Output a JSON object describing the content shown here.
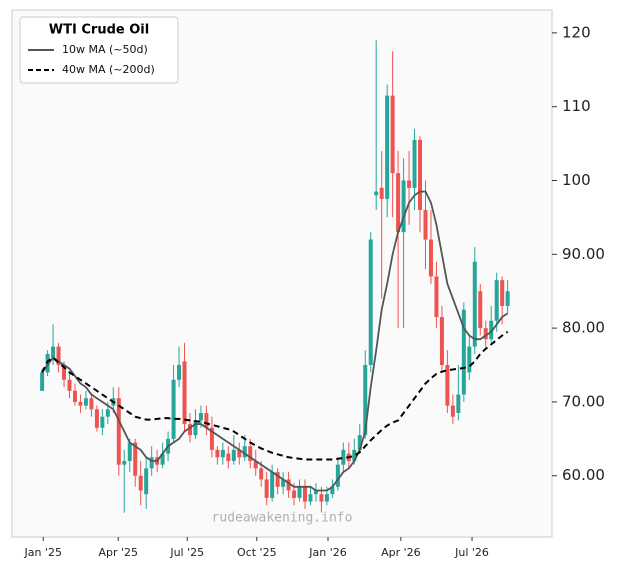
{
  "chart_data": {
    "type": "candlestick",
    "legend_title": "WTI Crude Oil",
    "watermark": "rudeawakening.info",
    "up_color": "#26a69a",
    "down_color": "#ef5350",
    "open": [
      71.5,
      74,
      76,
      77.5,
      75,
      73,
      71.5,
      70,
      69.5,
      70.5,
      69,
      66.5,
      68,
      69.5,
      70.5,
      61.5,
      62,
      64.5,
      60,
      57.5,
      61,
      62.5,
      61.5,
      63,
      65,
      73,
      75.5,
      67,
      65.5,
      67.5,
      68.5,
      66.5,
      63.5,
      62.5,
      63,
      62,
      63.5,
      62.5,
      64,
      62,
      61,
      59.5,
      57,
      60.5,
      58.5,
      59.5,
      58,
      57,
      58.5,
      56.5,
      57.5,
      57.5,
      56.5,
      57.5,
      58.5,
      61.5,
      63,
      62,
      63.5,
      65.5,
      75,
      98,
      99,
      97.5,
      111.5,
      101,
      93,
      100,
      99,
      105.5,
      96,
      92,
      87,
      81.5,
      75,
      69.5,
      68.5,
      71,
      74,
      77.5,
      85,
      80,
      78.5,
      81,
      86.5,
      83
    ],
    "high": [
      74.5,
      77,
      80.5,
      78,
      75.5,
      74,
      72.5,
      71,
      71.5,
      71,
      69.5,
      69,
      70,
      72,
      72,
      63.5,
      65,
      65,
      62,
      62.5,
      64,
      63.5,
      64.5,
      66,
      75,
      77.5,
      78,
      68.5,
      69,
      69.5,
      69.5,
      68,
      64,
      64.5,
      64,
      65.5,
      64.5,
      65.5,
      65,
      63.5,
      62,
      60.5,
      61.5,
      61,
      60.5,
      60.5,
      59,
      59.5,
      59.5,
      58.5,
      59,
      58.5,
      58.5,
      59.5,
      62.5,
      64.5,
      64.5,
      65,
      67,
      77,
      93,
      119,
      104,
      113,
      117.5,
      104,
      103,
      104,
      107,
      106,
      100,
      96,
      89,
      83,
      77,
      71,
      75,
      83.5,
      79,
      91,
      86,
      81,
      83,
      87.5,
      87,
      86.5
    ],
    "low": [
      71.5,
      73.5,
      75,
      74,
      72,
      70.5,
      69.5,
      68.5,
      69,
      68,
      66,
      65.5,
      67,
      68.5,
      60,
      55,
      60.5,
      58.5,
      56,
      55.5,
      60,
      60.5,
      61,
      62,
      64.5,
      72,
      66,
      64.5,
      65,
      66.5,
      65.5,
      62.5,
      61.5,
      61.5,
      61,
      61.5,
      61.5,
      62,
      61,
      60,
      58.5,
      56,
      56.5,
      57.5,
      57.5,
      57,
      56,
      56.5,
      55.5,
      56,
      56.5,
      55,
      56,
      57,
      58,
      60.5,
      61,
      61.5,
      63,
      65,
      74,
      96,
      84,
      95,
      95,
      80,
      80,
      94,
      96,
      93,
      88,
      86,
      80,
      74,
      68.5,
      67,
      67.5,
      70,
      73,
      76.5,
      79,
      77.5,
      78,
      79.5,
      80.5,
      82
    ],
    "close": [
      74,
      76.5,
      77.5,
      75,
      73,
      71.5,
      70,
      69.5,
      70.5,
      69,
      66.5,
      68,
      69,
      70.5,
      61.5,
      62,
      64.5,
      60,
      58,
      61,
      62.5,
      61.5,
      63,
      65,
      73,
      75,
      67,
      65.5,
      67.5,
      68.5,
      66.5,
      63.5,
      62.5,
      63.5,
      62,
      63.5,
      62.5,
      64,
      62,
      61,
      59.5,
      57,
      60.5,
      58.5,
      59.5,
      58,
      57,
      58.5,
      56.5,
      57.5,
      58,
      56.5,
      57.5,
      58.5,
      61.5,
      63.5,
      62,
      63.5,
      65.5,
      75,
      92,
      98.5,
      97.5,
      111.5,
      101,
      93,
      100,
      99,
      105.5,
      96,
      92,
      87,
      81.5,
      75,
      69.5,
      68,
      71,
      82.5,
      77.5,
      89,
      80,
      78.5,
      81,
      86.5,
      83,
      85
    ],
    "series": [
      {
        "name": "10w MA (~50d)",
        "color": "#555555",
        "dash": false,
        "values": [
          74,
          75,
          76,
          75.5,
          75,
          74.5,
          73.5,
          72.5,
          72,
          71,
          70.5,
          70,
          69.5,
          69,
          67.5,
          66,
          64.5,
          64,
          63.5,
          62.5,
          62,
          62,
          63,
          64,
          64.5,
          65,
          66,
          66.5,
          67,
          67,
          66.5,
          66,
          65.5,
          65,
          64.5,
          64,
          63.5,
          63,
          62.5,
          62,
          61.5,
          61,
          60.5,
          60,
          59.5,
          59,
          58.5,
          58.5,
          58.5,
          58.5,
          58,
          58,
          58,
          58.5,
          59.5,
          60.5,
          61,
          62,
          63.5,
          66,
          72,
          77,
          82.5,
          86,
          90,
          93,
          95,
          97,
          98,
          98.5,
          98.5,
          97,
          94,
          90,
          86,
          84,
          82,
          80,
          79,
          78.5,
          78.5,
          79,
          79.5,
          80.5,
          81.5,
          82
        ]
      },
      {
        "name": "40w MA (~200d)",
        "color": "#000000",
        "dash": true,
        "values": [
          74,
          75.5,
          76,
          75.3,
          74.7,
          74,
          73.5,
          73,
          72.5,
          72,
          71.5,
          71,
          70.5,
          70,
          69.5,
          69,
          68.5,
          68,
          67.8,
          67.6,
          67.6,
          67.7,
          67.8,
          67.8,
          67.7,
          67.7,
          67.6,
          67.5,
          67.4,
          67.3,
          67.1,
          66.9,
          66.7,
          66.5,
          66.3,
          66,
          65.5,
          65,
          64.5,
          64.1,
          63.7,
          63.4,
          63.1,
          62.9,
          62.7,
          62.5,
          62.4,
          62.3,
          62.2,
          62.2,
          62.2,
          62.2,
          62.2,
          62.2,
          62.3,
          62.4,
          62.5,
          62.7,
          63.2,
          64,
          64.8,
          65.5,
          66.2,
          66.8,
          67.2,
          67.5,
          68.5,
          69.5,
          70.5,
          71.5,
          72.5,
          73.2,
          73.8,
          74.1,
          74.3,
          74.4,
          74.5,
          74.6,
          74.8,
          75.5,
          76.5,
          77.2,
          77.8,
          78.4,
          79,
          79.5
        ]
      }
    ],
    "xlim": [
      -5.5,
      93.1
    ],
    "xticks": [
      {
        "value": 0.2,
        "label": "Jan '25"
      },
      {
        "value": 13.9,
        "label": "Apr '25"
      },
      {
        "value": 26.5,
        "label": "Jul '25"
      },
      {
        "value": 39.2,
        "label": "Oct '25"
      },
      {
        "value": 52.2,
        "label": "Jan '26"
      },
      {
        "value": 65.5,
        "label": "Apr '26"
      },
      {
        "value": 78.5,
        "label": "Jul '26"
      }
    ],
    "ylim": [
      51.7,
      123.1
    ],
    "yticks": [
      {
        "value": 60,
        "label": "60.00"
      },
      {
        "value": 70,
        "label": "70.00"
      },
      {
        "value": 80,
        "label": "80.00"
      },
      {
        "value": 90,
        "label": "90.00"
      },
      100,
      110,
      120
    ],
    "legend": "upper left"
  }
}
